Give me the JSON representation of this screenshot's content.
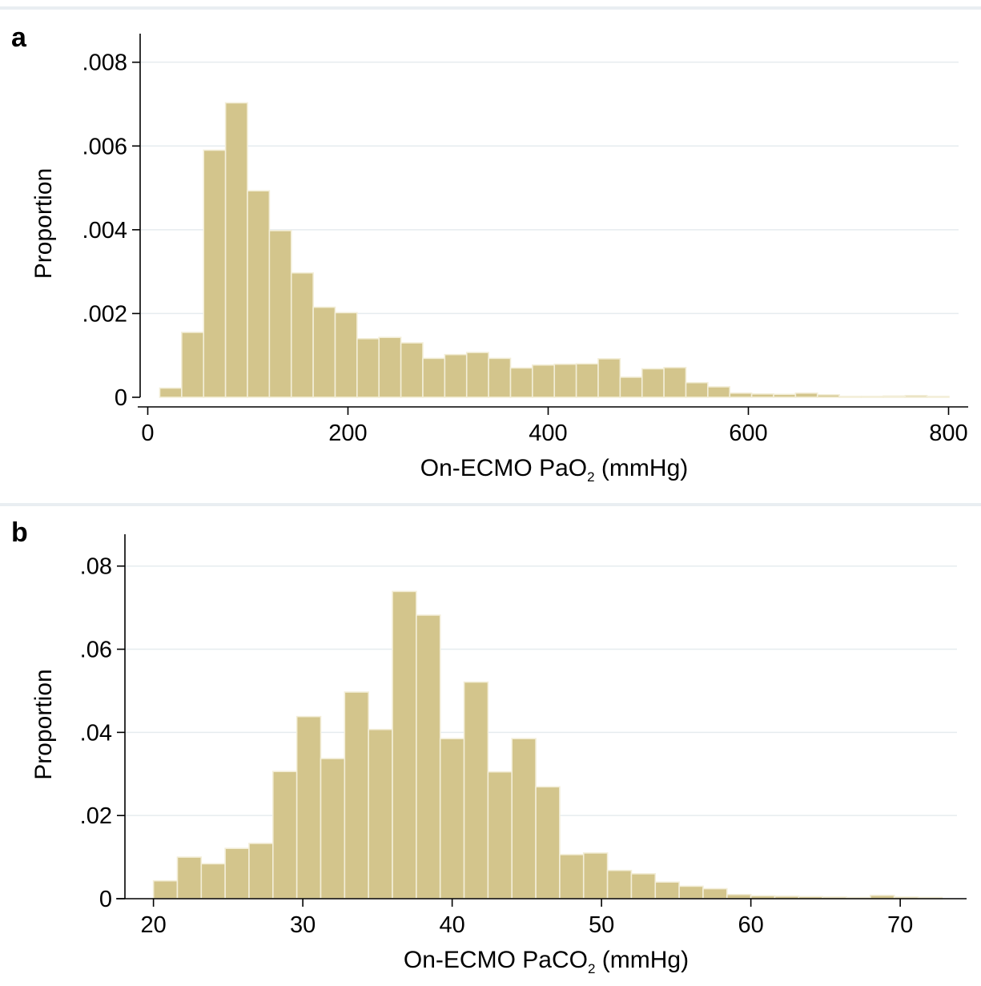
{
  "chart_data": [
    {
      "type": "bar",
      "panel_label": "a",
      "title": "",
      "ylabel": "Proportion",
      "xlabel": {
        "prefix": "On-ECMO PaO",
        "subscript": "2",
        "suffix": " (mmHg)"
      },
      "xlim": [
        -10,
        810
      ],
      "ylim": [
        0,
        0.0083
      ],
      "xticks": [
        {
          "value": 0,
          "label": "0"
        },
        {
          "value": 200,
          "label": "200"
        },
        {
          "value": 400,
          "label": "400"
        },
        {
          "value": 600,
          "label": "600"
        },
        {
          "value": 800,
          "label": "800"
        }
      ],
      "yticks": [
        {
          "value": 0,
          "label": "0"
        },
        {
          "value": 0.002,
          "label": ".002"
        },
        {
          "value": 0.004,
          "label": ".004"
        },
        {
          "value": 0.006,
          "label": ".006"
        },
        {
          "value": 0.008,
          "label": ".008"
        }
      ],
      "grid": true,
      "bar_color": "#d3c58c",
      "bar_edge": "#f3eed8",
      "bin_start": 12,
      "bin_width": 21.9,
      "values": [
        0.00022,
        0.00155,
        0.0059,
        0.00703,
        0.00493,
        0.00398,
        0.00297,
        0.00215,
        0.00202,
        0.0014,
        0.00143,
        0.0013,
        0.00093,
        0.00102,
        0.00107,
        0.00093,
        0.0007,
        0.00077,
        0.00079,
        0.0008,
        0.00092,
        0.00048,
        0.00068,
        0.00071,
        0.00035,
        0.00025,
        0.0001,
        8e-05,
        7e-05,
        0.0001,
        6e-05,
        2e-05,
        2e-05,
        3e-05,
        4e-05,
        2e-05
      ]
    },
    {
      "type": "bar",
      "panel_label": "b",
      "title": "",
      "ylabel": "Proportion",
      "xlabel": {
        "prefix": "On-ECMO PaCO",
        "subscript": "2",
        "suffix": " (mmHg)"
      },
      "xlim": [
        17.5,
        73.8
      ],
      "ylim": [
        0,
        0.0838
      ],
      "xticks": [
        {
          "value": 20,
          "label": "20"
        },
        {
          "value": 30,
          "label": "30"
        },
        {
          "value": 40,
          "label": "40"
        },
        {
          "value": 50,
          "label": "50"
        },
        {
          "value": 60,
          "label": "60"
        },
        {
          "value": 70,
          "label": "70"
        }
      ],
      "yticks": [
        {
          "value": 0,
          "label": "0"
        },
        {
          "value": 0.02,
          "label": ".02"
        },
        {
          "value": 0.04,
          "label": ".04"
        },
        {
          "value": 0.06,
          "label": ".06"
        },
        {
          "value": 0.08,
          "label": ".08"
        }
      ],
      "grid": true,
      "bar_color": "#d3c58c",
      "bar_edge": "#f3eed8",
      "bin_start": 20,
      "bin_width": 1.6,
      "values": [
        0.0043,
        0.01,
        0.0084,
        0.0121,
        0.0133,
        0.0306,
        0.0438,
        0.0337,
        0.0497,
        0.0407,
        0.0739,
        0.0682,
        0.0385,
        0.0521,
        0.0305,
        0.0385,
        0.0269,
        0.0106,
        0.011,
        0.0068,
        0.006,
        0.004,
        0.003,
        0.0024,
        0.001,
        0.0007,
        0.0006,
        0.0005,
        0.0004,
        0.0003,
        0.0008,
        0.0004,
        0.0003
      ]
    }
  ]
}
